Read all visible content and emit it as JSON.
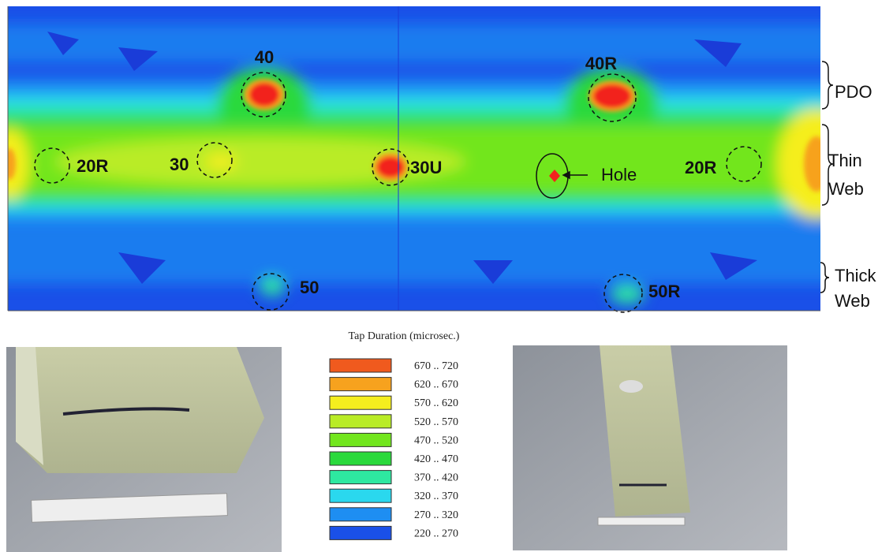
{
  "figure": {
    "map_labels": [
      "40",
      "40R",
      "20R",
      "30",
      "30U",
      "Hole",
      "20R",
      "50",
      "50R"
    ],
    "side_labels": {
      "pdo": "PDO",
      "thin": "Thin",
      "thin_web": "Web",
      "thick": "Thick",
      "thick_web": "Web"
    },
    "legend": {
      "title": "Tap Duration (microsec.)",
      "items": [
        {
          "label": "670 .. 720",
          "color": "#f05a1e"
        },
        {
          "label": "620 .. 670",
          "color": "#f7a21e"
        },
        {
          "label": "570 .. 620",
          "color": "#f5ee1e"
        },
        {
          "label": "520 .. 570",
          "color": "#b9ec26"
        },
        {
          "label": "470 .. 520",
          "color": "#72e61e"
        },
        {
          "label": "420 .. 470",
          "color": "#2ad93c"
        },
        {
          "label": "370 .. 420",
          "color": "#2ee8a0"
        },
        {
          "label": "320 .. 370",
          "color": "#2ad8ee"
        },
        {
          "label": "270 .. 320",
          "color": "#1e8ef2"
        },
        {
          "label": "220 .. 270",
          "color": "#1a50e8"
        }
      ]
    }
  }
}
